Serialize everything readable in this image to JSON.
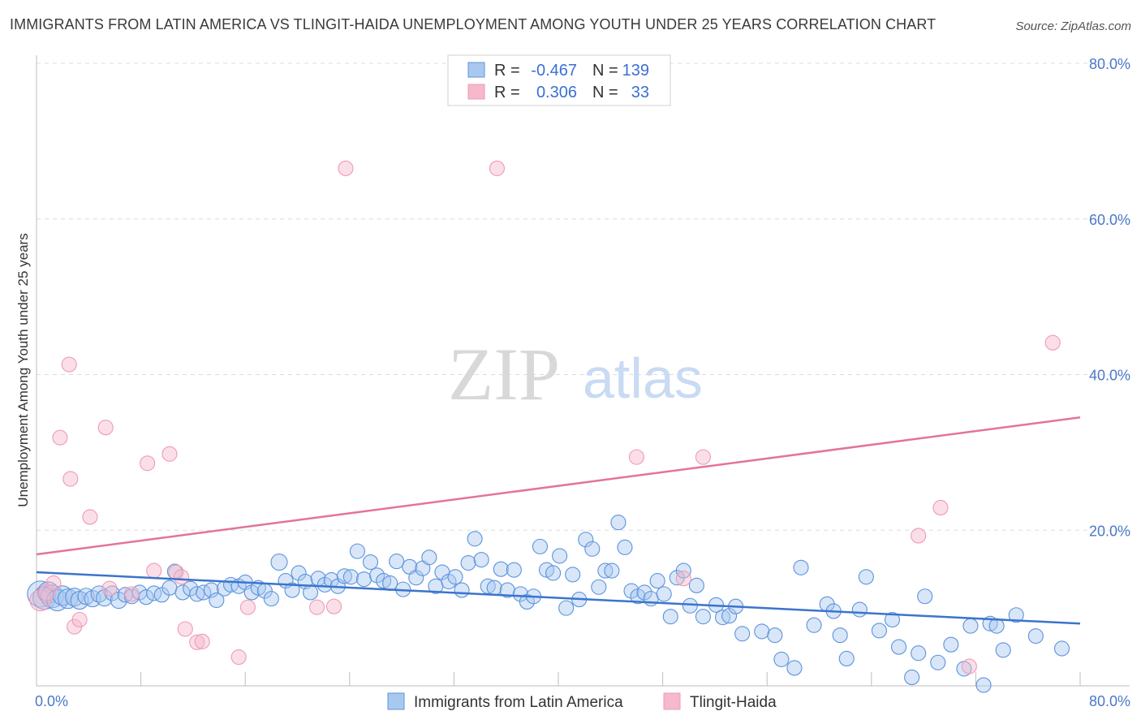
{
  "title": "IMMIGRANTS FROM LATIN AMERICA VS TLINGIT-HAIDA UNEMPLOYMENT AMONG YOUTH UNDER 25 YEARS CORRELATION CHART",
  "source": "Source: ZipAtlas.com",
  "watermark": {
    "zip": "ZIP",
    "atlas": "atlas"
  },
  "legend": {
    "rows": [
      {
        "r_label": "R =",
        "r_value": "-0.467",
        "n_label": "N =",
        "n_value": "139",
        "color": "#a9c8f0"
      },
      {
        "r_label": "R =",
        "r_value": "0.306",
        "n_label": "N =",
        "n_value": "33",
        "color": "#f6b8cb"
      }
    ]
  },
  "bottom_legend": [
    "Immigrants from Latin America",
    "Tlingit-Haida"
  ],
  "chart_data": {
    "type": "scatter",
    "title": "IMMIGRANTS FROM LATIN AMERICA VS TLINGIT-HAIDA UNEMPLOYMENT AMONG YOUTH UNDER 25 YEARS CORRELATION CHART",
    "xlabel": "",
    "ylabel": "Unemployment Among Youth under 25 years",
    "xlim": [
      0,
      80
    ],
    "ylim": [
      0,
      80
    ],
    "x_tick_labels": [
      "0.0%",
      "80.0%"
    ],
    "y_tick_labels": [
      "20.0%",
      "40.0%",
      "60.0%",
      "80.0%"
    ],
    "y_ticks": [
      20,
      40,
      60,
      80
    ],
    "grid": true,
    "legend_position": "top-center",
    "series": [
      {
        "name": "Immigrants from Latin America",
        "color": "#5b93dd",
        "fill": "#a9c8f0",
        "trend": {
          "x": [
            0,
            80
          ],
          "y": [
            14.6,
            8.0
          ],
          "color": "#3b74cc"
        },
        "points": [
          [
            0.3,
            11.8,
            16
          ],
          [
            0.6,
            11.3,
            14
          ],
          [
            0.9,
            12.0,
            13
          ],
          [
            1.2,
            11.5,
            14
          ],
          [
            1.6,
            11.0,
            13
          ],
          [
            2.0,
            11.6,
            12
          ],
          [
            2.4,
            11.2,
            12
          ],
          [
            2.9,
            11.4,
            11
          ],
          [
            3.3,
            11.0,
            11
          ],
          [
            3.8,
            11.5,
            10
          ],
          [
            4.3,
            11.2,
            10
          ],
          [
            4.8,
            11.8,
            10
          ],
          [
            5.2,
            11.3,
            10
          ],
          [
            5.8,
            11.9,
            9
          ],
          [
            6.3,
            11.0,
            10
          ],
          [
            6.8,
            11.7,
            9
          ],
          [
            7.3,
            11.5,
            9
          ],
          [
            7.9,
            12.0,
            9
          ],
          [
            8.4,
            11.4,
            9
          ],
          [
            9.0,
            11.9,
            9
          ],
          [
            9.6,
            11.7,
            9
          ],
          [
            10.2,
            12.6,
            9
          ],
          [
            10.6,
            14.7,
            9
          ],
          [
            11.2,
            12.0,
            9
          ],
          [
            11.8,
            12.5,
            9
          ],
          [
            12.3,
            11.8,
            9
          ],
          [
            12.8,
            12.0,
            9
          ],
          [
            13.4,
            12.3,
            9
          ],
          [
            13.8,
            11.0,
            9
          ],
          [
            14.4,
            12.5,
            9
          ],
          [
            14.9,
            13.0,
            9
          ],
          [
            15.5,
            12.8,
            9
          ],
          [
            16.0,
            13.3,
            9
          ],
          [
            16.5,
            12.0,
            9
          ],
          [
            17.0,
            12.6,
            9
          ],
          [
            17.5,
            12.2,
            9
          ],
          [
            18.0,
            11.2,
            9
          ],
          [
            18.6,
            15.9,
            10
          ],
          [
            19.1,
            13.5,
            9
          ],
          [
            19.6,
            12.3,
            9
          ],
          [
            20.1,
            14.5,
            9
          ],
          [
            20.6,
            13.4,
            9
          ],
          [
            21.0,
            12.0,
            9
          ],
          [
            21.6,
            13.8,
            9
          ],
          [
            22.1,
            13.0,
            9
          ],
          [
            22.6,
            13.6,
            9
          ],
          [
            23.1,
            12.8,
            9
          ],
          [
            23.6,
            14.1,
            9
          ],
          [
            24.1,
            14.0,
            9
          ],
          [
            24.6,
            17.3,
            9
          ],
          [
            25.1,
            13.7,
            9
          ],
          [
            25.6,
            15.9,
            9
          ],
          [
            26.1,
            14.2,
            9
          ],
          [
            26.6,
            13.5,
            9
          ],
          [
            27.1,
            13.2,
            9
          ],
          [
            27.6,
            16.0,
            9
          ],
          [
            28.1,
            12.4,
            9
          ],
          [
            28.6,
            15.3,
            9
          ],
          [
            29.1,
            13.9,
            9
          ],
          [
            29.6,
            15.1,
            9
          ],
          [
            30.1,
            16.5,
            9
          ],
          [
            30.6,
            12.8,
            9
          ],
          [
            31.1,
            14.6,
            9
          ],
          [
            31.6,
            13.4,
            9
          ],
          [
            32.1,
            14.0,
            9
          ],
          [
            32.6,
            12.3,
            9
          ],
          [
            33.1,
            15.8,
            9
          ],
          [
            33.6,
            18.9,
            9
          ],
          [
            34.1,
            16.2,
            9
          ],
          [
            34.6,
            12.8,
            9
          ],
          [
            35.1,
            12.6,
            9
          ],
          [
            35.6,
            15.0,
            9
          ],
          [
            36.1,
            12.3,
            9
          ],
          [
            36.6,
            14.9,
            9
          ],
          [
            37.1,
            11.8,
            9
          ],
          [
            37.6,
            10.8,
            9
          ],
          [
            38.1,
            11.5,
            9
          ],
          [
            38.6,
            17.9,
            9
          ],
          [
            39.1,
            14.9,
            9
          ],
          [
            39.6,
            14.5,
            9
          ],
          [
            40.1,
            16.7,
            9
          ],
          [
            40.6,
            10.0,
            9
          ],
          [
            41.1,
            14.3,
            9
          ],
          [
            41.6,
            11.1,
            9
          ],
          [
            42.1,
            18.8,
            9
          ],
          [
            42.6,
            17.6,
            9
          ],
          [
            43.1,
            12.7,
            9
          ],
          [
            43.6,
            14.8,
            9
          ],
          [
            44.1,
            14.8,
            9
          ],
          [
            44.6,
            21.0,
            9
          ],
          [
            45.1,
            17.8,
            9
          ],
          [
            45.6,
            12.2,
            9
          ],
          [
            46.1,
            11.5,
            9
          ],
          [
            46.6,
            12.0,
            9
          ],
          [
            47.1,
            11.2,
            9
          ],
          [
            47.6,
            13.5,
            9
          ],
          [
            48.1,
            11.8,
            9
          ],
          [
            48.6,
            8.9,
            9
          ],
          [
            49.1,
            13.9,
            9
          ],
          [
            49.6,
            14.8,
            9
          ],
          [
            50.1,
            10.3,
            9
          ],
          [
            50.6,
            12.9,
            9
          ],
          [
            51.1,
            8.9,
            9
          ],
          [
            52.1,
            10.4,
            9
          ],
          [
            52.6,
            8.8,
            9
          ],
          [
            53.1,
            9.0,
            9
          ],
          [
            53.6,
            10.2,
            9
          ],
          [
            54.1,
            6.7,
            9
          ],
          [
            55.6,
            7.0,
            9
          ],
          [
            56.6,
            6.5,
            9
          ],
          [
            57.1,
            3.4,
            9
          ],
          [
            58.1,
            2.3,
            9
          ],
          [
            58.6,
            15.2,
            9
          ],
          [
            59.6,
            7.8,
            9
          ],
          [
            60.6,
            10.5,
            9
          ],
          [
            61.1,
            9.6,
            9
          ],
          [
            61.6,
            6.5,
            9
          ],
          [
            62.1,
            3.5,
            9
          ],
          [
            63.1,
            9.8,
            9
          ],
          [
            63.6,
            14.0,
            9
          ],
          [
            64.6,
            7.1,
            9
          ],
          [
            65.6,
            8.5,
            9
          ],
          [
            66.1,
            5.0,
            9
          ],
          [
            67.1,
            1.1,
            9
          ],
          [
            67.6,
            4.2,
            9
          ],
          [
            68.1,
            11.5,
            9
          ],
          [
            69.1,
            3.0,
            9
          ],
          [
            70.1,
            5.3,
            9
          ],
          [
            71.1,
            2.2,
            9
          ],
          [
            71.6,
            7.7,
            9
          ],
          [
            72.6,
            0.1,
            9
          ],
          [
            73.1,
            8.0,
            9
          ],
          [
            73.6,
            7.7,
            9
          ],
          [
            74.1,
            4.6,
            9
          ],
          [
            75.1,
            9.1,
            9
          ],
          [
            76.6,
            6.4,
            9
          ],
          [
            78.6,
            4.8,
            9
          ]
        ]
      },
      {
        "name": "Tlingit-Haida",
        "color": "#ef9ab4",
        "fill": "#f6b8cb",
        "trend": {
          "x": [
            0,
            80
          ],
          "y": [
            16.9,
            34.5
          ],
          "color": "#e2749a"
        },
        "points": [
          [
            0.3,
            11.0,
            13
          ],
          [
            0.8,
            12.0,
            10
          ],
          [
            1.3,
            13.2,
            9
          ],
          [
            1.8,
            31.9,
            9
          ],
          [
            2.5,
            41.3,
            9
          ],
          [
            2.6,
            26.6,
            9
          ],
          [
            2.9,
            7.6,
            9
          ],
          [
            3.3,
            8.5,
            9
          ],
          [
            4.1,
            21.7,
            9
          ],
          [
            5.3,
            33.2,
            9
          ],
          [
            5.6,
            12.5,
            9
          ],
          [
            7.3,
            11.8,
            9
          ],
          [
            8.5,
            28.6,
            9
          ],
          [
            9.0,
            14.8,
            9
          ],
          [
            10.2,
            29.8,
            9
          ],
          [
            10.7,
            14.6,
            9
          ],
          [
            11.1,
            14.0,
            9
          ],
          [
            11.4,
            7.3,
            9
          ],
          [
            12.3,
            5.6,
            9
          ],
          [
            12.7,
            5.7,
            9
          ],
          [
            15.5,
            3.7,
            9
          ],
          [
            16.2,
            10.1,
            9
          ],
          [
            21.5,
            10.1,
            9
          ],
          [
            22.8,
            10.2,
            9
          ],
          [
            23.7,
            66.5,
            9
          ],
          [
            35.3,
            66.5,
            9
          ],
          [
            46.0,
            29.4,
            9
          ],
          [
            49.6,
            13.8,
            9
          ],
          [
            51.1,
            29.4,
            9
          ],
          [
            67.6,
            19.3,
            9
          ],
          [
            69.3,
            22.9,
            9
          ],
          [
            71.5,
            2.5,
            9
          ],
          [
            77.9,
            44.1,
            9
          ]
        ]
      }
    ]
  }
}
